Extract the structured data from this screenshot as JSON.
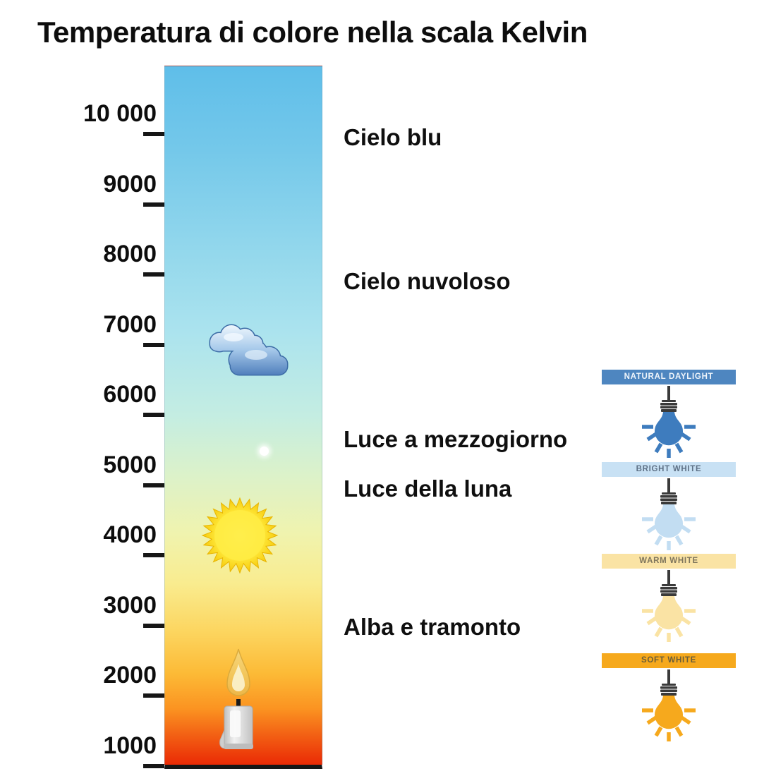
{
  "title": "Temperatura di colore nella scala Kelvin",
  "scale": {
    "unit": "Kelvin",
    "ticks": [
      {
        "label": "10 000",
        "value": 10000
      },
      {
        "label": "9000",
        "value": 9000
      },
      {
        "label": "8000",
        "value": 8000
      },
      {
        "label": "7000",
        "value": 7000
      },
      {
        "label": "6000",
        "value": 6000
      },
      {
        "label": "5000",
        "value": 5000
      },
      {
        "label": "4000",
        "value": 4000
      },
      {
        "label": "3000",
        "value": 3000
      },
      {
        "label": "2000",
        "value": 2000
      },
      {
        "label": "1000",
        "value": 1000
      }
    ]
  },
  "annotations": [
    {
      "label": "Cielo blu",
      "kelvin": 9950
    },
    {
      "label": "Cielo nuvoloso",
      "kelvin": 7900
    },
    {
      "label": "Luce a mezzogiorno",
      "kelvin": 5650
    },
    {
      "label": "Luce della luna",
      "kelvin": 4950
    },
    {
      "label": "Alba e tramonto",
      "kelvin": 2980
    }
  ],
  "scale_icons": [
    {
      "icon": "cloud-icon",
      "kelvin": 6900
    },
    {
      "icon": "moon-icon",
      "kelvin": 5480
    },
    {
      "icon": "sun-icon",
      "kelvin": 4280
    },
    {
      "icon": "candle-icon",
      "kelvin": 1960
    }
  ],
  "bulb_legend": [
    {
      "label": "NATURAL DAYLIGHT",
      "banner_color": "#4E86C0",
      "text_color": "#EFF5FB",
      "bulb_color": "#3E7CBE"
    },
    {
      "label": "BRIGHT WHITE",
      "banner_color": "#C8E1F4",
      "text_color": "#5E7186",
      "bulb_color": "#C2DDF2"
    },
    {
      "label": "WARM WHITE",
      "banner_color": "#FAE3A4",
      "text_color": "#7E755C",
      "bulb_color": "#FAE3A4"
    },
    {
      "label": "SOFT WHITE",
      "banner_color": "#F6A91D",
      "text_color": "#6B5E39",
      "bulb_color": "#F6A91D"
    }
  ],
  "gradient": {
    "stops": [
      "#5FBEE9",
      "#74C8EA",
      "#92D7EC",
      "#ABE3EE",
      "#C4EDE2",
      "#DDF2C8",
      "#F0F3AE",
      "#F9EC8F",
      "#FCD55F",
      "#FCBA36",
      "#FB9321",
      "#F25D13",
      "#EA2A05"
    ]
  }
}
